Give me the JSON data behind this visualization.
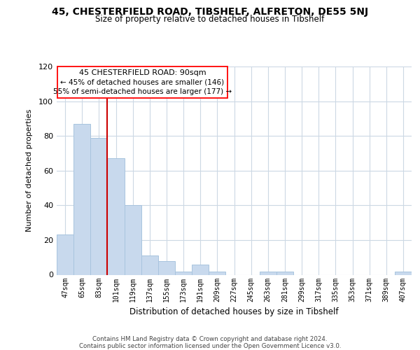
{
  "title1": "45, CHESTERFIELD ROAD, TIBSHELF, ALFRETON, DE55 5NJ",
  "title2": "Size of property relative to detached houses in Tibshelf",
  "xlabel": "Distribution of detached houses by size in Tibshelf",
  "ylabel": "Number of detached properties",
  "bin_labels": [
    "47sqm",
    "65sqm",
    "83sqm",
    "101sqm",
    "119sqm",
    "137sqm",
    "155sqm",
    "173sqm",
    "191sqm",
    "209sqm",
    "227sqm",
    "245sqm",
    "263sqm",
    "281sqm",
    "299sqm",
    "317sqm",
    "335sqm",
    "353sqm",
    "371sqm",
    "389sqm",
    "407sqm"
  ],
  "bar_values": [
    23,
    87,
    79,
    67,
    40,
    11,
    8,
    2,
    6,
    2,
    0,
    0,
    2,
    2,
    0,
    0,
    0,
    0,
    0,
    0,
    2
  ],
  "bar_color": "#c8d9ed",
  "bar_edge_color": "#a8c4de",
  "vline_color": "#cc0000",
  "vline_x_index": 2,
  "ylim": [
    0,
    120
  ],
  "yticks": [
    0,
    20,
    40,
    60,
    80,
    100,
    120
  ],
  "annotation_title": "45 CHESTERFIELD ROAD: 90sqm",
  "annotation_line1": "← 45% of detached houses are smaller (146)",
  "annotation_line2": "55% of semi-detached houses are larger (177) →",
  "footer1": "Contains HM Land Registry data © Crown copyright and database right 2024.",
  "footer2": "Contains public sector information licensed under the Open Government Licence v3.0.",
  "bg_color": "#ffffff",
  "grid_color": "#ccd8e4"
}
